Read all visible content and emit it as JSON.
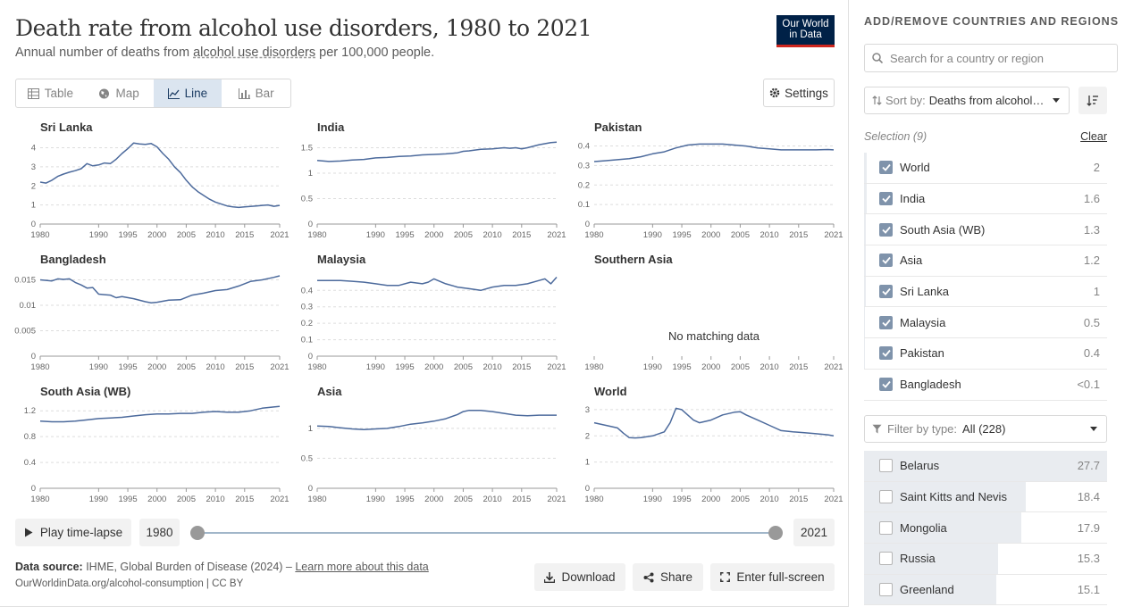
{
  "header": {
    "title": "Death rate from alcohol use disorders, 1980 to 2021",
    "subtitle_pre": "Annual number of deaths from ",
    "subtitle_link": "alcohol use disorders",
    "subtitle_post": " per 100,000 people.",
    "logo_line1": "Our World",
    "logo_line2": "in Data"
  },
  "tabs": [
    {
      "label": "Table",
      "icon": "table-icon"
    },
    {
      "label": "Map",
      "icon": "globe-icon"
    },
    {
      "label": "Line",
      "icon": "line-chart-icon",
      "active": true
    },
    {
      "label": "Bar",
      "icon": "bar-chart-icon"
    }
  ],
  "settings_label": "Settings",
  "no_data_text": "No matching data",
  "chart_data": {
    "type": "line",
    "layout": "small-multiples",
    "x_range": [
      1980,
      2021
    ],
    "x_ticks": [
      1980,
      1990,
      1995,
      2000,
      2005,
      2010,
      2015,
      2021
    ],
    "color": "#4c6a9c",
    "panels": [
      {
        "name": "Sri Lanka",
        "ylim": [
          0,
          4.4
        ],
        "yticks": [
          0,
          1,
          2,
          3,
          4
        ],
        "x": [
          1980,
          1981,
          1982,
          1983,
          1984,
          1985,
          1986,
          1987,
          1988,
          1989,
          1990,
          1991,
          1992,
          1993,
          1994,
          1995,
          1996,
          1997,
          1998,
          1999,
          2000,
          2001,
          2002,
          2003,
          2004,
          2005,
          2006,
          2007,
          2008,
          2009,
          2010,
          2011,
          2012,
          2013,
          2014,
          2015,
          2016,
          2017,
          2018,
          2019,
          2020,
          2021
        ],
        "y": [
          2.2,
          2.15,
          2.3,
          2.5,
          2.62,
          2.72,
          2.8,
          2.9,
          3.17,
          3.05,
          3.1,
          3.2,
          3.17,
          3.4,
          3.7,
          3.95,
          4.25,
          4.2,
          4.18,
          4.22,
          4.05,
          3.7,
          3.4,
          3.0,
          2.7,
          2.3,
          1.95,
          1.7,
          1.5,
          1.3,
          1.15,
          1.05,
          0.95,
          0.9,
          0.87,
          0.9,
          0.92,
          0.95,
          0.98,
          1.0,
          0.93,
          0.98
        ]
      },
      {
        "name": "India",
        "ylim": [
          0,
          1.65
        ],
        "yticks": [
          0,
          0.5,
          1,
          1.5
        ],
        "x": [
          1980,
          1982,
          1984,
          1986,
          1988,
          1990,
          1992,
          1994,
          1996,
          1998,
          2000,
          2002,
          2004,
          2005,
          2006,
          2008,
          2010,
          2012,
          2013,
          2014,
          2015,
          2016,
          2018,
          2020,
          2021
        ],
        "y": [
          1.25,
          1.23,
          1.24,
          1.26,
          1.27,
          1.3,
          1.31,
          1.33,
          1.34,
          1.36,
          1.37,
          1.38,
          1.4,
          1.43,
          1.44,
          1.47,
          1.48,
          1.5,
          1.49,
          1.5,
          1.48,
          1.5,
          1.56,
          1.6,
          1.61
        ]
      },
      {
        "name": "Pakistan",
        "ylim": [
          0,
          0.43
        ],
        "yticks": [
          0,
          0.1,
          0.2,
          0.3,
          0.4
        ],
        "x": [
          1980,
          1982,
          1984,
          1986,
          1988,
          1990,
          1992,
          1994,
          1996,
          1998,
          2000,
          2002,
          2004,
          2006,
          2008,
          2010,
          2012,
          2014,
          2016,
          2018,
          2020,
          2021
        ],
        "y": [
          0.32,
          0.325,
          0.33,
          0.335,
          0.345,
          0.36,
          0.37,
          0.39,
          0.405,
          0.41,
          0.41,
          0.41,
          0.405,
          0.4,
          0.39,
          0.385,
          0.38,
          0.38,
          0.38,
          0.38,
          0.382,
          0.38
        ]
      },
      {
        "name": "Bangladesh",
        "ylim": [
          0,
          0.0165
        ],
        "yticks": [
          0,
          0.005,
          0.01,
          0.015
        ],
        "x": [
          1980,
          1982,
          1983,
          1984,
          1985,
          1986,
          1987,
          1988,
          1989,
          1990,
          1991,
          1992,
          1993,
          1994,
          1996,
          1998,
          1999,
          2000,
          2002,
          2004,
          2006,
          2008,
          2010,
          2012,
          2014,
          2016,
          2018,
          2020,
          2021
        ],
        "y": [
          0.015,
          0.0148,
          0.0152,
          0.0151,
          0.0152,
          0.0145,
          0.014,
          0.0134,
          0.0135,
          0.0122,
          0.0121,
          0.012,
          0.0115,
          0.0117,
          0.0113,
          0.0107,
          0.0105,
          0.0106,
          0.011,
          0.0111,
          0.012,
          0.0124,
          0.0129,
          0.0131,
          0.0138,
          0.0147,
          0.015,
          0.0155,
          0.0158
        ]
      },
      {
        "name": "Malaysia",
        "ylim": [
          0,
          0.51
        ],
        "yticks": [
          0,
          0.1,
          0.2,
          0.3,
          0.4
        ],
        "x": [
          1980,
          1982,
          1984,
          1986,
          1988,
          1990,
          1992,
          1994,
          1996,
          1998,
          1999,
          2000,
          2002,
          2004,
          2006,
          2008,
          2010,
          2012,
          2014,
          2016,
          2018,
          2019,
          2020,
          2021
        ],
        "y": [
          0.46,
          0.46,
          0.46,
          0.455,
          0.45,
          0.44,
          0.43,
          0.43,
          0.45,
          0.44,
          0.45,
          0.47,
          0.44,
          0.42,
          0.41,
          0.4,
          0.42,
          0.43,
          0.43,
          0.44,
          0.46,
          0.47,
          0.44,
          0.48
        ]
      },
      {
        "name": "Southern Asia",
        "no_data": true
      },
      {
        "name": "South Asia (WB)",
        "ylim": [
          0,
          1.3
        ],
        "yticks": [
          0,
          0.4,
          0.8,
          1.2
        ],
        "x": [
          1980,
          1982,
          1984,
          1986,
          1988,
          1990,
          1992,
          1994,
          1996,
          1998,
          2000,
          2002,
          2004,
          2006,
          2008,
          2010,
          2012,
          2014,
          2016,
          2018,
          2020,
          2021
        ],
        "y": [
          1.04,
          1.03,
          1.03,
          1.04,
          1.06,
          1.08,
          1.09,
          1.1,
          1.12,
          1.14,
          1.15,
          1.15,
          1.16,
          1.16,
          1.18,
          1.19,
          1.18,
          1.18,
          1.2,
          1.24,
          1.26,
          1.27
        ]
      },
      {
        "name": "Asia",
        "ylim": [
          0,
          1.4
        ],
        "yticks": [
          0,
          0.5,
          1
        ],
        "x": [
          1980,
          1982,
          1984,
          1986,
          1988,
          1990,
          1992,
          1994,
          1996,
          1998,
          2000,
          2002,
          2004,
          2005,
          2006,
          2008,
          2010,
          2012,
          2014,
          2016,
          2018,
          2020,
          2021
        ],
        "y": [
          1.04,
          1.03,
          1.01,
          0.99,
          0.98,
          0.99,
          1.0,
          1.03,
          1.07,
          1.09,
          1.12,
          1.16,
          1.23,
          1.28,
          1.3,
          1.3,
          1.28,
          1.25,
          1.22,
          1.21,
          1.22,
          1.22,
          1.22
        ]
      },
      {
        "name": "World",
        "ylim": [
          0,
          3.2
        ],
        "yticks": [
          0,
          1,
          2,
          3
        ],
        "x": [
          1980,
          1982,
          1984,
          1985,
          1986,
          1987,
          1988,
          1990,
          1992,
          1993,
          1994,
          1995,
          1996,
          1997,
          1998,
          2000,
          2002,
          2004,
          2005,
          2006,
          2008,
          2010,
          2012,
          2014,
          2016,
          2018,
          2020,
          2021
        ],
        "y": [
          2.5,
          2.4,
          2.3,
          2.1,
          1.93,
          1.92,
          1.93,
          2.0,
          2.15,
          2.5,
          3.05,
          3.0,
          2.8,
          2.6,
          2.5,
          2.6,
          2.8,
          2.9,
          2.92,
          2.8,
          2.6,
          2.4,
          2.2,
          2.15,
          2.12,
          2.08,
          2.04,
          2.0
        ]
      }
    ]
  },
  "timeline": {
    "play_label": "Play time-lapse",
    "start_year": "1980",
    "end_year": "2021"
  },
  "footer": {
    "source_label": "Data source:",
    "source_text": " IHME, Global Burden of Disease (2024) – ",
    "learn_more": "Learn more about this data",
    "url": "OurWorldinData.org/alcohol-consumption | CC BY",
    "download": "Download",
    "share": "Share",
    "fullscreen": "Enter full-screen"
  },
  "sidebar": {
    "heading": "ADD/REMOVE COUNTRIES AND REGIONS",
    "search_placeholder": "Search for a country or region",
    "sort_label": "Sort by:",
    "sort_value": "Deaths from alcohol use disorders",
    "selection_label": "Selection (9)",
    "clear_label": "Clear",
    "selected": [
      {
        "name": "World",
        "value": "2",
        "bar": 0.012
      },
      {
        "name": "India",
        "value": "1.6",
        "bar": 0.01
      },
      {
        "name": "South Asia (WB)",
        "value": "1.3",
        "bar": 0.008
      },
      {
        "name": "Asia",
        "value": "1.2",
        "bar": 0.007
      },
      {
        "name": "Sri Lanka",
        "value": "1",
        "bar": 0.006
      },
      {
        "name": "Malaysia",
        "value": "0.5",
        "bar": 0.004
      },
      {
        "name": "Pakistan",
        "value": "0.4",
        "bar": 0.003
      },
      {
        "name": "Bangladesh",
        "value": "<0.1",
        "bar": 0.0
      }
    ],
    "filter_label": "Filter by type:",
    "filter_value": "All (228)",
    "others": [
      {
        "name": "Belarus",
        "value": "27.7",
        "bar": 1.0
      },
      {
        "name": "Saint Kitts and Nevis",
        "value": "18.4",
        "bar": 0.664
      },
      {
        "name": "Mongolia",
        "value": "17.9",
        "bar": 0.646
      },
      {
        "name": "Russia",
        "value": "15.3",
        "bar": 0.552
      },
      {
        "name": "Greenland",
        "value": "15.1",
        "bar": 0.545
      }
    ]
  }
}
